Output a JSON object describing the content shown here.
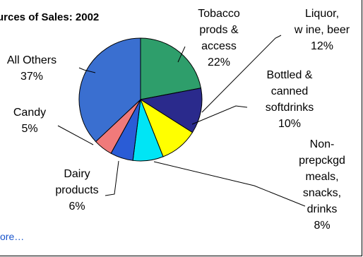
{
  "chart_data": {
    "type": "pie",
    "title": "urces of Sales: 2002",
    "slices": [
      {
        "label_lines": [
          "Tobacco",
          "prods &",
          "access",
          "22%"
        ],
        "value": 22,
        "color": "#2e9e6b"
      },
      {
        "label_lines": [
          "Liquor,",
          "w ine, beer",
          "12%"
        ],
        "value": 12,
        "color": "#2a2a8c"
      },
      {
        "label_lines": [
          "Bottled &",
          "canned",
          "softdrinks",
          "10%"
        ],
        "value": 10,
        "color": "#ffff00"
      },
      {
        "label_lines": [
          "Non-",
          "prepckgd",
          "meals,",
          "snacks,",
          "drinks",
          "8%"
        ],
        "value": 8,
        "color": "#00e5f5"
      },
      {
        "label_lines": [
          "Dairy",
          "products",
          "6%"
        ],
        "value": 6,
        "color": "#2a5cd6"
      },
      {
        "label_lines": [
          "Candy",
          "5%"
        ],
        "value": 5,
        "color": "#f07a7a"
      },
      {
        "label_lines": [
          "All Others",
          "37%"
        ],
        "value": 37,
        "color": "#3a6fd0"
      }
    ]
  },
  "link": {
    "more_label": "ore…"
  }
}
